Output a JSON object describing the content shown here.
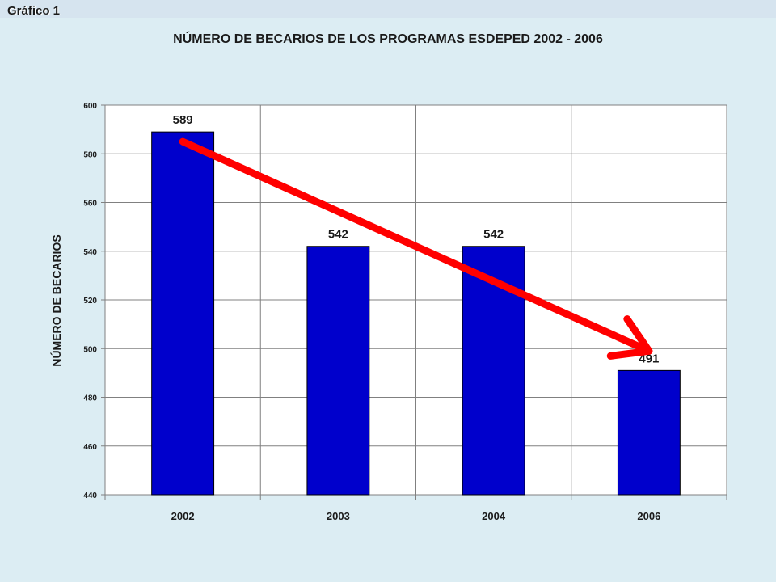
{
  "slide_label": "Gráfico 1",
  "chart_data": {
    "type": "bar",
    "title": "NÚMERO  DE  BECARIOS  DE  LOS  PROGRAMAS  ESDEPED  2002 - 2006",
    "xlabel": "",
    "ylabel": "NÚMERO DE BECARIOS",
    "categories": [
      "2002",
      "2003",
      "2004",
      "2006"
    ],
    "values": [
      589,
      542,
      542,
      491
    ],
    "data_labels": [
      "589",
      "542",
      "542",
      "491"
    ],
    "ylim": [
      440,
      600
    ],
    "yticks": [
      440,
      460,
      480,
      500,
      520,
      540,
      560,
      580,
      600
    ],
    "grid": true,
    "legend": "none",
    "bar_color": "#0000cc",
    "plot_background": "#ffffff",
    "page_background": "#dcedf3",
    "annotation": {
      "type": "arrow",
      "description": "trend arrow from 2002 bar top to 2006 bar label",
      "color": "#ff0000",
      "from": {
        "x": "2002",
        "y": 585
      },
      "to": {
        "x": "2006",
        "y": 499
      }
    }
  }
}
